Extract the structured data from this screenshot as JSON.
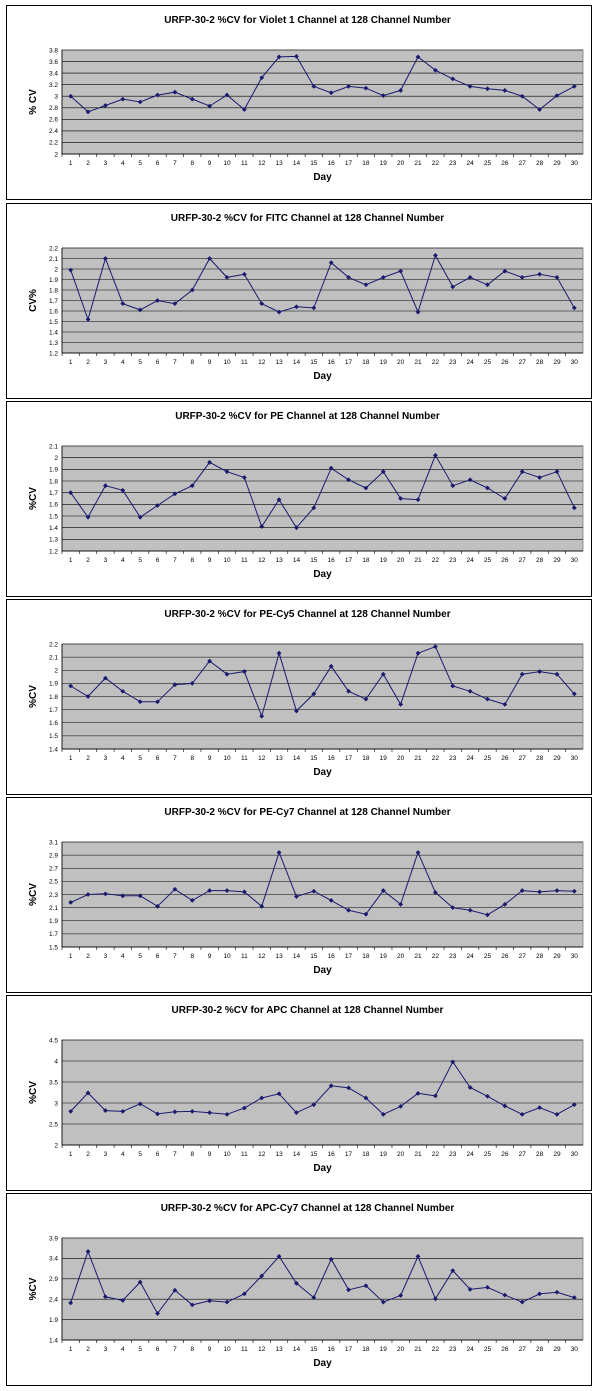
{
  "charts": [
    {
      "chart_data": {
        "type": "line",
        "title": "URFP-30-2 %CV for Violet 1 Channel at 128 Channel Number",
        "xlabel": "Day",
        "ylabel": "% CV",
        "categories": [
          "1",
          "2",
          "3",
          "4",
          "5",
          "6",
          "7",
          "8",
          "9",
          "10",
          "11",
          "12",
          "13",
          "14",
          "15",
          "16",
          "17",
          "18",
          "19",
          "20",
          "21",
          "22",
          "23",
          "24",
          "25",
          "26",
          "27",
          "28",
          "29",
          "30"
        ],
        "yticks": [
          "2",
          "2.2",
          "2.4",
          "2.6",
          "2.8",
          "3",
          "3.2",
          "3.4",
          "3.6",
          "3.8"
        ],
        "ylim": [
          2,
          3.8
        ],
        "values": [
          3.0,
          2.73,
          2.84,
          2.95,
          2.9,
          3.02,
          3.07,
          2.95,
          2.83,
          3.02,
          2.77,
          3.32,
          3.68,
          3.69,
          3.17,
          3.06,
          3.17,
          3.14,
          3.01,
          3.1,
          3.68,
          3.45,
          3.3,
          3.17,
          3.13,
          3.1,
          3.0,
          2.77,
          3.01,
          3.17
        ],
        "grid": true,
        "legend": "none"
      }
    },
    {
      "chart_data": {
        "type": "line",
        "title": "URFP-30-2 %CV for FITC Channel at 128 Channel Number",
        "xlabel": "Day",
        "ylabel": "CV%",
        "categories": [
          "1",
          "2",
          "3",
          "4",
          "5",
          "6",
          "7",
          "8",
          "9",
          "10",
          "11",
          "12",
          "13",
          "14",
          "15",
          "16",
          "17",
          "18",
          "19",
          "20",
          "21",
          "22",
          "23",
          "24",
          "25",
          "26",
          "27",
          "28",
          "29",
          "30"
        ],
        "yticks": [
          "1.2",
          "1.3",
          "1.4",
          "1.5",
          "1.6",
          "1.7",
          "1.8",
          "1.9",
          "2",
          "2.1",
          "2.2"
        ],
        "ylim": [
          1.2,
          2.2
        ],
        "values": [
          1.99,
          1.52,
          2.1,
          1.67,
          1.61,
          1.7,
          1.67,
          1.8,
          2.1,
          1.92,
          1.95,
          1.67,
          1.59,
          1.64,
          1.63,
          2.06,
          1.92,
          1.85,
          1.92,
          1.98,
          1.59,
          2.13,
          1.83,
          1.92,
          1.85,
          1.98,
          1.92,
          1.95,
          1.92,
          1.63
        ],
        "grid": true,
        "legend": "none"
      }
    },
    {
      "chart_data": {
        "type": "line",
        "title": "URFP-30-2 %CV for PE Channel at 128 Channel Number",
        "xlabel": "Day",
        "ylabel": "%CV",
        "categories": [
          "1",
          "2",
          "3",
          "4",
          "5",
          "6",
          "7",
          "8",
          "9",
          "10",
          "11",
          "12",
          "13",
          "14",
          "15",
          "16",
          "17",
          "18",
          "19",
          "20",
          "21",
          "22",
          "23",
          "24",
          "25",
          "26",
          "27",
          "28",
          "29",
          "30"
        ],
        "yticks": [
          "1.2",
          "1.3",
          "1.4",
          "1.5",
          "1.6",
          "1.7",
          "1.8",
          "1.9",
          "2",
          "2.1"
        ],
        "ylim": [
          1.2,
          2.1
        ],
        "values": [
          1.7,
          1.49,
          1.76,
          1.72,
          1.49,
          1.59,
          1.69,
          1.76,
          1.96,
          1.88,
          1.83,
          1.41,
          1.64,
          1.4,
          1.57,
          1.91,
          1.81,
          1.74,
          1.88,
          1.65,
          1.64,
          2.02,
          1.76,
          1.81,
          1.74,
          1.65,
          1.88,
          1.83,
          1.88,
          1.57
        ],
        "grid": true,
        "legend": "none"
      }
    },
    {
      "chart_data": {
        "type": "line",
        "title": "URFP-30-2 %CV for PE-Cy5 Channel at 128 Channel Number",
        "xlabel": "Day",
        "ylabel": "%CV",
        "categories": [
          "1",
          "2",
          "3",
          "4",
          "5",
          "6",
          "7",
          "8",
          "9",
          "10",
          "11",
          "12",
          "13",
          "14",
          "15",
          "16",
          "17",
          "18",
          "19",
          "20",
          "21",
          "22",
          "23",
          "24",
          "25",
          "26",
          "27",
          "28",
          "29",
          "30"
        ],
        "yticks": [
          "1.4",
          "1.5",
          "1.6",
          "1.7",
          "1.8",
          "1.9",
          "2",
          "2.1",
          "2.2"
        ],
        "ylim": [
          1.4,
          2.2
        ],
        "values": [
          1.88,
          1.8,
          1.94,
          1.84,
          1.76,
          1.76,
          1.89,
          1.9,
          2.07,
          1.97,
          1.99,
          1.65,
          2.13,
          1.69,
          1.82,
          2.03,
          1.84,
          1.78,
          1.97,
          1.74,
          2.13,
          2.18,
          1.88,
          1.84,
          1.78,
          1.74,
          1.97,
          1.99,
          1.97,
          1.82
        ],
        "grid": true,
        "legend": "none"
      }
    },
    {
      "chart_data": {
        "type": "line",
        "title": "URFP-30-2 %CV for PE-Cy7 Channel at 128 Channel Number",
        "xlabel": "Day",
        "ylabel": "%CV",
        "categories": [
          "1",
          "2",
          "3",
          "4",
          "5",
          "6",
          "7",
          "8",
          "9",
          "10",
          "11",
          "12",
          "13",
          "14",
          "15",
          "16",
          "17",
          "18",
          "19",
          "20",
          "21",
          "22",
          "23",
          "24",
          "25",
          "26",
          "27",
          "28",
          "29",
          "30"
        ],
        "yticks": [
          "1.5",
          "1.7",
          "1.9",
          "2.1",
          "2.3",
          "2.5",
          "2.7",
          "2.9",
          "3.1"
        ],
        "ylim": [
          1.5,
          3.1
        ],
        "values": [
          2.18,
          2.3,
          2.31,
          2.28,
          2.28,
          2.12,
          2.38,
          2.21,
          2.36,
          2.36,
          2.34,
          2.12,
          2.94,
          2.27,
          2.35,
          2.21,
          2.06,
          2.0,
          2.36,
          2.15,
          2.94,
          2.33,
          2.1,
          2.06,
          1.99,
          2.15,
          2.36,
          2.34,
          2.36,
          2.35
        ],
        "grid": true,
        "legend": "none"
      }
    },
    {
      "chart_data": {
        "type": "line",
        "title": "URFP-30-2 %CV for APC Channel at 128 Channel Number",
        "xlabel": "Day",
        "ylabel": "%CV",
        "categories": [
          "1",
          "2",
          "3",
          "4",
          "5",
          "6",
          "7",
          "8",
          "9",
          "10",
          "11",
          "12",
          "13",
          "14",
          "15",
          "16",
          "17",
          "18",
          "19",
          "20",
          "21",
          "22",
          "23",
          "24",
          "25",
          "26",
          "27",
          "28",
          "29",
          "30"
        ],
        "yticks": [
          "2",
          "2.5",
          "3",
          "3.5",
          "4",
          "4.5"
        ],
        "ylim": [
          2,
          4.5
        ],
        "values": [
          2.8,
          3.24,
          2.82,
          2.8,
          2.98,
          2.74,
          2.79,
          2.8,
          2.77,
          2.73,
          2.88,
          3.12,
          3.22,
          2.77,
          2.96,
          3.41,
          3.36,
          3.12,
          2.73,
          2.92,
          3.23,
          3.17,
          3.98,
          3.37,
          3.16,
          2.93,
          2.73,
          2.89,
          2.73,
          2.96
        ],
        "grid": true,
        "legend": "none"
      }
    },
    {
      "chart_data": {
        "type": "line",
        "title": "URFP-30-2 %CV for APC-Cy7 Channel at 128 Channel Number",
        "xlabel": "Day",
        "ylabel": "%CV",
        "categories": [
          "1",
          "2",
          "3",
          "4",
          "5",
          "6",
          "7",
          "8",
          "9",
          "10",
          "11",
          "12",
          "13",
          "14",
          "15",
          "16",
          "17",
          "18",
          "19",
          "20",
          "21",
          "22",
          "23",
          "24",
          "25",
          "26",
          "27",
          "28",
          "29",
          "30"
        ],
        "yticks": [
          "1.4",
          "1.9",
          "2.4",
          "2.9",
          "3.4",
          "3.9"
        ],
        "ylim": [
          1.4,
          3.9
        ],
        "values": [
          2.31,
          3.57,
          2.46,
          2.37,
          2.82,
          2.05,
          2.62,
          2.26,
          2.36,
          2.33,
          2.53,
          2.97,
          3.45,
          2.79,
          2.44,
          3.38,
          2.63,
          2.73,
          2.33,
          2.49,
          3.45,
          2.41,
          3.1,
          2.64,
          2.69,
          2.5,
          2.33,
          2.53,
          2.57,
          2.44
        ],
        "grid": true,
        "legend": "none"
      }
    }
  ],
  "style": {
    "plot_bg": "#c0c0c0",
    "line_color": "#1a1a6e",
    "grid_color": "#000000"
  }
}
